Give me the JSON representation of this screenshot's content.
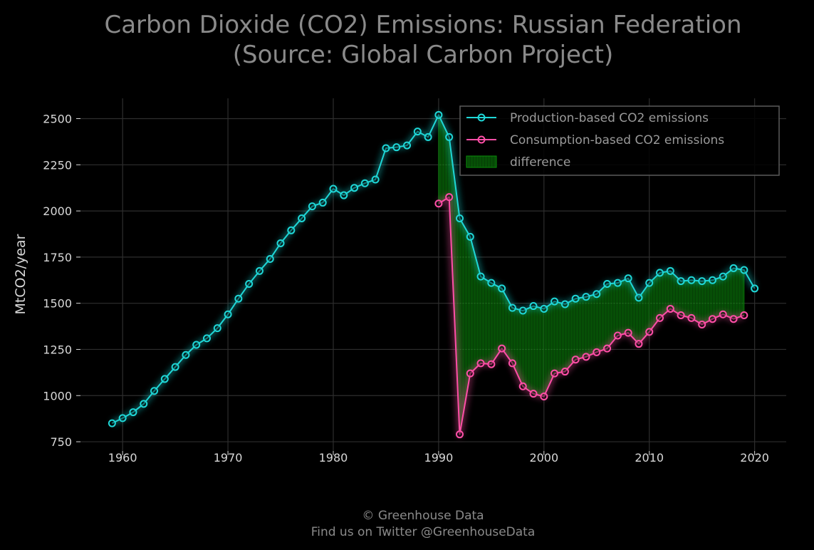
{
  "chart_data": {
    "type": "line",
    "title_line1": "Carbon Dioxide (CO2) Emissions: Russian Federation",
    "title_line2": "(Source: Global Carbon Project)",
    "xlabel": "",
    "ylabel": "MtCO2/year",
    "xlim": [
      1956,
      2023
    ],
    "ylim": [
      700,
      2610
    ],
    "xticks": [
      1960,
      1970,
      1980,
      1990,
      2000,
      2010,
      2020
    ],
    "yticks": [
      750,
      1000,
      1250,
      1500,
      1750,
      2000,
      2250,
      2500
    ],
    "grid": true,
    "legend_position": "top-right",
    "series": [
      {
        "name": "Production-based CO2 emissions",
        "color": "#1fd7d7",
        "x": [
          1959,
          1960,
          1961,
          1962,
          1963,
          1964,
          1965,
          1966,
          1967,
          1968,
          1969,
          1970,
          1971,
          1972,
          1973,
          1974,
          1975,
          1976,
          1977,
          1978,
          1979,
          1980,
          1981,
          1982,
          1983,
          1984,
          1985,
          1986,
          1987,
          1988,
          1989,
          1990,
          1991,
          1992,
          1993,
          1994,
          1995,
          1996,
          1997,
          1998,
          1999,
          2000,
          2001,
          2002,
          2003,
          2004,
          2005,
          2006,
          2007,
          2008,
          2009,
          2010,
          2011,
          2012,
          2013,
          2014,
          2015,
          2016,
          2017,
          2018,
          2019,
          2020
        ],
        "y": [
          850,
          878,
          910,
          955,
          1025,
          1090,
          1155,
          1220,
          1275,
          1310,
          1365,
          1440,
          1525,
          1605,
          1675,
          1740,
          1825,
          1895,
          1960,
          2025,
          2045,
          2120,
          2085,
          2125,
          2150,
          2170,
          2340,
          2345,
          2355,
          2430,
          2400,
          2520,
          2400,
          1960,
          1860,
          1645,
          1610,
          1580,
          1475,
          1460,
          1485,
          1470,
          1510,
          1495,
          1525,
          1535,
          1550,
          1605,
          1610,
          1635,
          1530,
          1610,
          1665,
          1675,
          1620,
          1625,
          1620,
          1625,
          1645,
          1690,
          1680,
          1580
        ]
      },
      {
        "name": "Consumption-based CO2 emissions",
        "color": "#ff4fa7",
        "x": [
          1990,
          1991,
          1992,
          1993,
          1994,
          1995,
          1996,
          1997,
          1998,
          1999,
          2000,
          2001,
          2002,
          2003,
          2004,
          2005,
          2006,
          2007,
          2008,
          2009,
          2010,
          2011,
          2012,
          2013,
          2014,
          2015,
          2016,
          2017,
          2018,
          2019
        ],
        "y": [
          2040,
          2075,
          790,
          1120,
          1175,
          1170,
          1255,
          1175,
          1050,
          1010,
          995,
          1120,
          1130,
          1195,
          1210,
          1235,
          1255,
          1325,
          1340,
          1280,
          1345,
          1420,
          1470,
          1435,
          1420,
          1385,
          1415,
          1440,
          1415,
          1435
        ]
      }
    ],
    "difference": {
      "name": "difference",
      "color": "#0f8f0f",
      "x_range": [
        1990,
        2019
      ]
    }
  },
  "footer": {
    "line1": "© Greenhouse Data",
    "line2": "Find us on Twitter @GreenhouseData"
  }
}
